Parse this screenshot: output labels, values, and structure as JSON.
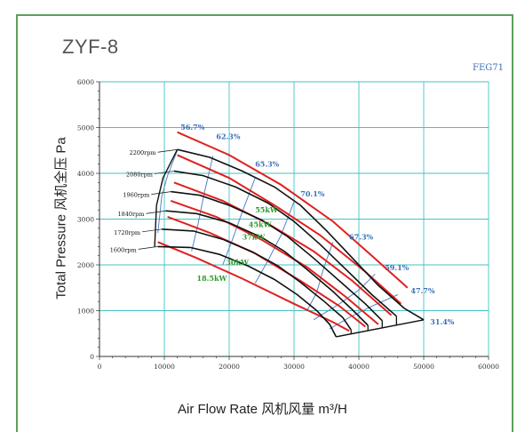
{
  "model": "ZYF-8",
  "code": "FEG71",
  "chart_data": {
    "type": "line",
    "xlabel": "Air Flow Rate 风机风量  m³/H",
    "ylabel": "Total Pressure 风机全压  Pa",
    "xlim": [
      0,
      60000
    ],
    "ylim": [
      0,
      6000
    ],
    "xticks": [
      "0",
      "10000",
      "20000",
      "30000",
      "40000",
      "50000",
      "60000"
    ],
    "yticks": [
      "0",
      "1000",
      "2000",
      "3000",
      "4000",
      "5000",
      "6000"
    ],
    "grid": true,
    "speed_curves": [
      {
        "name": "2200rpm",
        "points": [
          [
            12000,
            4520
          ],
          [
            17000,
            4350
          ],
          [
            22000,
            4050
          ],
          [
            27000,
            3700
          ],
          [
            31000,
            3300
          ],
          [
            35000,
            2750
          ],
          [
            39000,
            2150
          ],
          [
            43000,
            1550
          ],
          [
            47000,
            1050
          ],
          [
            50000,
            800
          ]
        ]
      },
      {
        "name": "2080rpm",
        "points": [
          [
            11500,
            4050
          ],
          [
            16000,
            3950
          ],
          [
            21000,
            3700
          ],
          [
            26000,
            3350
          ],
          [
            30000,
            2950
          ],
          [
            34000,
            2450
          ],
          [
            38000,
            1900
          ],
          [
            42000,
            1350
          ],
          [
            45800,
            880
          ]
        ]
      },
      {
        "name": "1960rpm",
        "points": [
          [
            11000,
            3600
          ],
          [
            15500,
            3520
          ],
          [
            20000,
            3300
          ],
          [
            25000,
            2980
          ],
          [
            29000,
            2620
          ],
          [
            33000,
            2150
          ],
          [
            37000,
            1650
          ],
          [
            41000,
            1150
          ],
          [
            43600,
            780
          ]
        ]
      },
      {
        "name": "1840rpm",
        "points": [
          [
            10200,
            3180
          ],
          [
            15000,
            3120
          ],
          [
            20000,
            2920
          ],
          [
            25000,
            2600
          ],
          [
            28500,
            2300
          ],
          [
            32000,
            1900
          ],
          [
            36000,
            1420
          ],
          [
            39000,
            1020
          ],
          [
            41400,
            680
          ]
        ]
      },
      {
        "name": "1720rpm",
        "points": [
          [
            9600,
            2780
          ],
          [
            14500,
            2740
          ],
          [
            19000,
            2560
          ],
          [
            23500,
            2290
          ],
          [
            27500,
            1980
          ],
          [
            31000,
            1620
          ],
          [
            34500,
            1220
          ],
          [
            37500,
            850
          ],
          [
            38800,
            580
          ]
        ]
      },
      {
        "name": "1600rpm",
        "points": [
          [
            9000,
            2400
          ],
          [
            14000,
            2380
          ],
          [
            18500,
            2230
          ],
          [
            23000,
            1970
          ],
          [
            27000,
            1680
          ],
          [
            30500,
            1350
          ],
          [
            33500,
            1000
          ],
          [
            35500,
            700
          ],
          [
            36500,
            430
          ]
        ]
      }
    ],
    "envelope_points": [
      [
        8500,
        2400
      ],
      [
        8800,
        3300
      ],
      [
        9800,
        3900
      ],
      [
        12000,
        4520
      ]
    ],
    "envelope_bottom": [
      [
        36500,
        430
      ],
      [
        50000,
        800
      ]
    ],
    "motor_lines": [
      {
        "name": "18.5kW",
        "points": [
          [
            9000,
            2500
          ],
          [
            15000,
            2150
          ],
          [
            22000,
            1700
          ],
          [
            30000,
            1150
          ],
          [
            36000,
            750
          ],
          [
            38500,
            560
          ]
        ],
        "label_at": [
          15000,
          1650
        ]
      },
      {
        "name": "30kW",
        "points": [
          [
            10500,
            3050
          ],
          [
            17000,
            2700
          ],
          [
            24000,
            2250
          ],
          [
            31000,
            1650
          ],
          [
            37000,
            1100
          ],
          [
            41000,
            650
          ]
        ],
        "label_at": [
          19500,
          2000
        ]
      },
      {
        "name": "37kW",
        "points": [
          [
            11000,
            3400
          ],
          [
            18000,
            3050
          ],
          [
            25000,
            2550
          ],
          [
            32000,
            1950
          ],
          [
            38000,
            1300
          ],
          [
            43000,
            700
          ]
        ],
        "label_at": [
          22000,
          2550
        ]
      },
      {
        "name": "45kW",
        "points": [
          [
            11500,
            3800
          ],
          [
            19000,
            3400
          ],
          [
            26000,
            2900
          ],
          [
            33000,
            2300
          ],
          [
            39000,
            1650
          ],
          [
            45000,
            900
          ]
        ],
        "label_at": [
          23000,
          2830
        ]
      },
      {
        "name": "55kW",
        "points": [
          [
            12000,
            4400
          ],
          [
            20000,
            3900
          ],
          [
            27000,
            3300
          ],
          [
            34000,
            2650
          ],
          [
            41000,
            1850
          ],
          [
            46500,
            1150
          ]
        ],
        "label_at": [
          24000,
          3150
        ]
      },
      {
        "name": "",
        "points": [
          [
            12000,
            4900
          ],
          [
            20000,
            4400
          ],
          [
            28000,
            3750
          ],
          [
            36000,
            2950
          ],
          [
            42000,
            2200
          ],
          [
            47500,
            1500
          ]
        ],
        "label_at": null
      }
    ],
    "efficiency_lines": [
      {
        "label": "56.7%",
        "label_at": [
          12500,
          4950
        ],
        "points": [
          [
            12000,
            4500
          ],
          [
            10500,
            3950
          ],
          [
            9600,
            3500
          ],
          [
            9000,
            2700
          ]
        ]
      },
      {
        "label": "62.3%",
        "label_at": [
          18000,
          4750
        ],
        "points": [
          [
            17500,
            4380
          ],
          [
            16200,
            3600
          ],
          [
            15200,
            2900
          ],
          [
            14200,
            2300
          ]
        ]
      },
      {
        "label": "65.3%",
        "label_at": [
          24000,
          4150
        ],
        "points": [
          [
            24000,
            3900
          ],
          [
            22000,
            3150
          ],
          [
            20500,
            2550
          ],
          [
            19000,
            2000
          ]
        ]
      },
      {
        "label": "70.1%",
        "label_at": [
          31000,
          3500
        ],
        "points": [
          [
            30000,
            3380
          ],
          [
            28000,
            2650
          ],
          [
            26000,
            2100
          ],
          [
            24000,
            1600
          ]
        ]
      },
      {
        "label": "67.3%",
        "label_at": [
          38500,
          2550
        ],
        "points": [
          [
            36000,
            2500
          ],
          [
            34500,
            1900
          ],
          [
            33500,
            1400
          ],
          [
            32000,
            1000
          ]
        ]
      },
      {
        "label": "59.1%",
        "label_at": [
          44000,
          1880
        ],
        "points": [
          [
            42500,
            1800
          ],
          [
            40000,
            1450
          ],
          [
            37000,
            1150
          ],
          [
            33000,
            800
          ]
        ]
      },
      {
        "label": "47.7%",
        "label_at": [
          48000,
          1380
        ],
        "points": [
          [
            46000,
            1350
          ],
          [
            42000,
            1100
          ],
          [
            38500,
            850
          ],
          [
            35500,
            600
          ]
        ]
      },
      {
        "label": "31.4%",
        "label_at": [
          51000,
          700
        ],
        "points": []
      }
    ]
  }
}
